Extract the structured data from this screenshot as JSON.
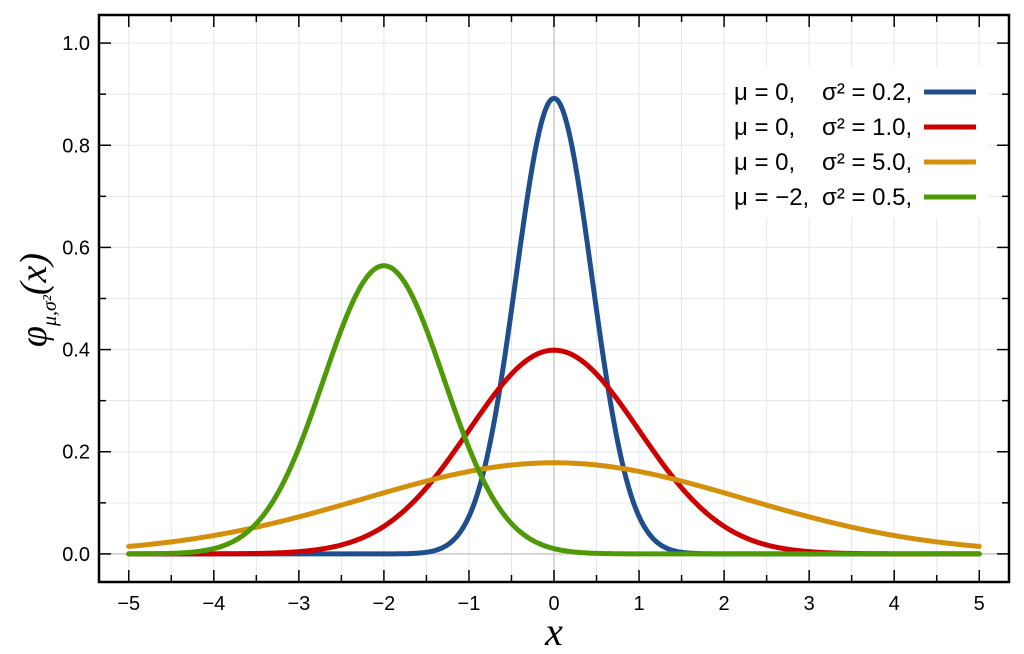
{
  "chart_data": {
    "type": "line",
    "xlabel": "x",
    "ylabel": "φ",
    "ylabel_subscript": "μ,σ²",
    "ylabel_arg": "(x)",
    "xlim": [
      -5.35,
      5.35
    ],
    "ylim": [
      -0.055,
      1.055
    ],
    "xticks": [
      -5,
      -4,
      -3,
      -2,
      -1,
      0,
      1,
      2,
      3,
      4,
      5
    ],
    "xtick_labels": [
      "−5",
      "−4",
      "−3",
      "−2",
      "−1",
      "0",
      "1",
      "2",
      "3",
      "4",
      "5"
    ],
    "yticks": [
      0.0,
      0.2,
      0.4,
      0.6,
      0.8,
      1.0
    ],
    "ytick_labels": [
      "0.0",
      "0.2",
      "0.4",
      "0.6",
      "0.8",
      "1.0"
    ],
    "grid": true,
    "legend_position": "top-right",
    "x_range": [
      -5,
      5
    ],
    "series": [
      {
        "mu": 0,
        "sigma2": 0.2,
        "mu_label": "μ = 0,",
        "sigma_label": "σ² = 0.2,",
        "color": "#1f4e8c"
      },
      {
        "mu": 0,
        "sigma2": 1.0,
        "mu_label": "μ = 0,",
        "sigma_label": "σ² = 1.0,",
        "color": "#cc0000"
      },
      {
        "mu": 0,
        "sigma2": 5.0,
        "mu_label": "μ = 0,",
        "sigma_label": "σ² = 5.0,",
        "color": "#d4900a"
      },
      {
        "mu": -2,
        "sigma2": 0.5,
        "mu_label": "μ = −2,",
        "sigma_label": "σ² = 0.5,",
        "color": "#4e9a06"
      }
    ]
  }
}
